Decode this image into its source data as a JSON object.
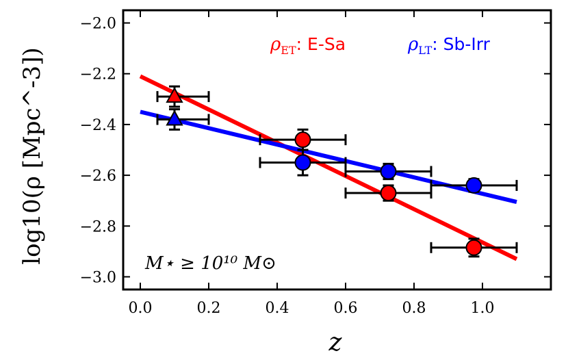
{
  "chart_data": {
    "type": "scatter",
    "xlabel": "z",
    "ylabel": "log10(ρ [Mpc^-3])",
    "xlim": [
      -0.05,
      1.2
    ],
    "ylim": [
      -3.05,
      -1.95
    ],
    "xticks": [
      0.0,
      0.2,
      0.4,
      0.6,
      0.8,
      1.0
    ],
    "xtick_labels": [
      "0.0",
      "0.2",
      "0.4",
      "0.6",
      "0.8",
      "1.0"
    ],
    "yticks": [
      -2.0,
      -2.2,
      -2.4,
      -2.6,
      -2.8,
      -3.0
    ],
    "ytick_labels": [
      "−2.0",
      "−2.2",
      "−2.4",
      "−2.6",
      "−2.8",
      "−3.0"
    ],
    "annotation": "M⋆ ≥ 10¹⁰ M⊙",
    "legend": [
      {
        "symbol": "ρ",
        "sub": "ET",
        "label": ": E-Sa",
        "color": "#ff0000"
      },
      {
        "symbol": "ρ",
        "sub": "LT",
        "label": ": Sb-Irr",
        "color": "#0000ff"
      }
    ],
    "series": [
      {
        "name": "ρET: E-Sa",
        "color": "#ff0000",
        "fit_line": {
          "x": [
            0.0,
            1.1
          ],
          "y": [
            -2.21,
            -2.93
          ]
        },
        "points": [
          {
            "x": 0.1,
            "y": -2.29,
            "xerr": [
              0.05,
              0.2
            ],
            "yerr": 0.04,
            "marker": "triangle"
          },
          {
            "x": 0.475,
            "y": -2.46,
            "xerr": [
              0.35,
              0.6
            ],
            "yerr": 0.04,
            "marker": "circle"
          },
          {
            "x": 0.725,
            "y": -2.67,
            "xerr": [
              0.6,
              0.85
            ],
            "yerr": 0.03,
            "marker": "circle"
          },
          {
            "x": 0.975,
            "y": -2.885,
            "xerr": [
              0.85,
              1.1
            ],
            "yerr": 0.035,
            "marker": "circle"
          }
        ]
      },
      {
        "name": "ρLT: Sb-Irr",
        "color": "#0000ff",
        "fit_line": {
          "x": [
            0.0,
            1.1
          ],
          "y": [
            -2.35,
            -2.705
          ]
        },
        "points": [
          {
            "x": 0.1,
            "y": -2.38,
            "xerr": [
              0.05,
              0.2
            ],
            "yerr": 0.04,
            "marker": "triangle"
          },
          {
            "x": 0.475,
            "y": -2.55,
            "xerr": [
              0.35,
              0.6
            ],
            "yerr": 0.05,
            "marker": "circle"
          },
          {
            "x": 0.725,
            "y": -2.585,
            "xerr": [
              0.6,
              0.85
            ],
            "yerr": 0.03,
            "marker": "circle"
          },
          {
            "x": 0.975,
            "y": -2.64,
            "xerr": [
              0.85,
              1.1
            ],
            "yerr": 0.025,
            "marker": "circle"
          }
        ]
      }
    ]
  }
}
